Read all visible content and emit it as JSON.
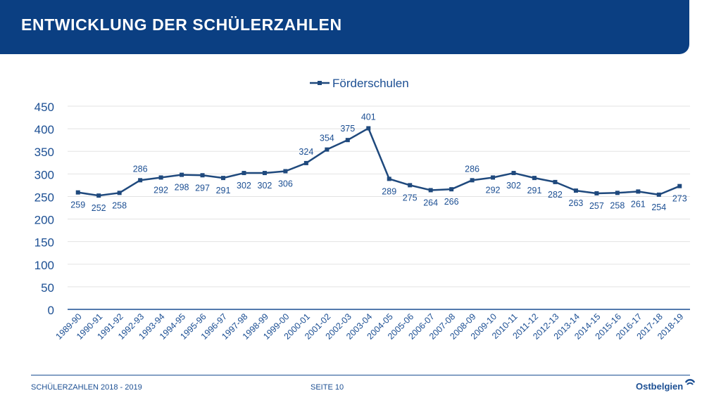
{
  "header": {
    "title": "ENTWICKLUNG DER SCHÜLERZAHLEN"
  },
  "footer": {
    "left": "SCHÜLERZAHLEN 2018 - 2019",
    "center": "SEITE 10"
  },
  "logo": {
    "text": "Ostbelgien",
    "mark_icon": "swirl-logo-icon"
  },
  "colors": {
    "header_bg": "#0b3f82",
    "series": "#1f497d",
    "text": "#1c4f93",
    "grid": "#e3e3e3"
  },
  "chart_data": {
    "type": "line",
    "title": "",
    "xlabel": "",
    "ylabel": "",
    "ylim": [
      0,
      450
    ],
    "yticks": [
      0,
      50,
      100,
      150,
      200,
      250,
      300,
      350,
      400,
      450
    ],
    "grid": true,
    "legend": "top-center",
    "categories": [
      "1989-90",
      "1990-91",
      "1991-92",
      "1992-93",
      "1993-94",
      "1994-95",
      "1995-96",
      "1996-97",
      "1997-98",
      "1998-99",
      "1999-00",
      "2000-01",
      "2001-02",
      "2002-03",
      "2003-04",
      "2004-05",
      "2005-06",
      "2006-07",
      "2007-08",
      "2008-09",
      "2009-10",
      "2010-11",
      "2011-12",
      "2012-13",
      "2013-14",
      "2014-15",
      "2015-16",
      "2016-17",
      "2017-18",
      "2018-19"
    ],
    "series": [
      {
        "name": "Förderschulen",
        "values": [
          259,
          252,
          258,
          286,
          292,
          298,
          297,
          291,
          302,
          302,
          306,
          324,
          354,
          375,
          401,
          289,
          275,
          264,
          266,
          286,
          292,
          302,
          291,
          282,
          263,
          257,
          258,
          261,
          254,
          273
        ]
      }
    ]
  }
}
